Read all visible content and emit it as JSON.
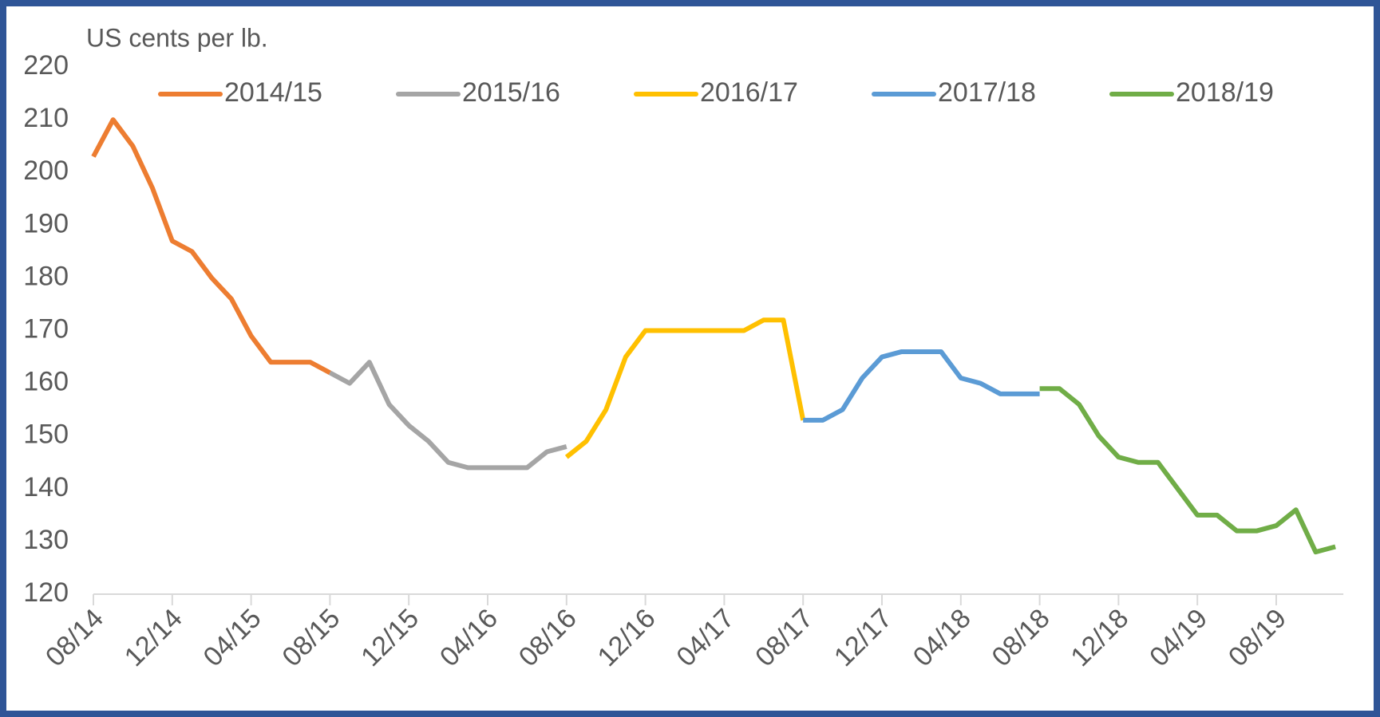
{
  "chart_data": {
    "type": "line",
    "y_label": "US cents per lb.",
    "categories": [
      "08/14",
      null,
      null,
      null,
      "12/14",
      null,
      null,
      null,
      "04/15",
      null,
      null,
      null,
      "08/15",
      null,
      null,
      null,
      "12/15",
      null,
      null,
      null,
      "04/16",
      null,
      null,
      null,
      "08/16",
      null,
      null,
      null,
      "12/16",
      null,
      null,
      null,
      "04/17",
      null,
      null,
      null,
      "08/17",
      null,
      null,
      null,
      "12/17",
      null,
      null,
      null,
      "04/18",
      null,
      null,
      null,
      "08/18",
      null,
      null,
      null,
      "12/18",
      null,
      null,
      null,
      "04/19",
      null,
      null,
      null,
      "08/19",
      null,
      null,
      null
    ],
    "series": [
      {
        "name": "2014/15",
        "color": "#ed7d31",
        "values": [
          203,
          210,
          205,
          197,
          187,
          185,
          180,
          176,
          169,
          164,
          164,
          164,
          162,
          null,
          null,
          null,
          null,
          null,
          null,
          null,
          null,
          null,
          null,
          null,
          null,
          null,
          null,
          null,
          null,
          null,
          null,
          null,
          null,
          null,
          null,
          null,
          null,
          null,
          null,
          null,
          null,
          null,
          null,
          null,
          null,
          null,
          null,
          null,
          null,
          null,
          null,
          null,
          null,
          null,
          null,
          null,
          null,
          null,
          null,
          null,
          null,
          null,
          null,
          null
        ]
      },
      {
        "name": "2015/16",
        "color": "#a5a5a5",
        "values": [
          null,
          null,
          null,
          null,
          null,
          null,
          null,
          null,
          null,
          null,
          null,
          null,
          162,
          160,
          164,
          156,
          152,
          149,
          145,
          144,
          144,
          144,
          144,
          147,
          148,
          null,
          null,
          null,
          null,
          null,
          null,
          null,
          null,
          null,
          null,
          null,
          null,
          null,
          null,
          null,
          null,
          null,
          null,
          null,
          null,
          null,
          null,
          null,
          null,
          null,
          null,
          null,
          null,
          null,
          null,
          null,
          null,
          null,
          null,
          null,
          null,
          null,
          null,
          null
        ]
      },
      {
        "name": "2016/17",
        "color": "#ffc000",
        "values": [
          null,
          null,
          null,
          null,
          null,
          null,
          null,
          null,
          null,
          null,
          null,
          null,
          null,
          null,
          null,
          null,
          null,
          null,
          null,
          null,
          null,
          null,
          null,
          null,
          146,
          149,
          155,
          165,
          170,
          170,
          170,
          170,
          170,
          170,
          172,
          172,
          153,
          null,
          null,
          null,
          null,
          null,
          null,
          null,
          null,
          null,
          null,
          null,
          null,
          null,
          null,
          null,
          null,
          null,
          null,
          null,
          null,
          null,
          null,
          null,
          null,
          null,
          null,
          null
        ]
      },
      {
        "name": "2017/18",
        "color": "#5b9bd5",
        "values": [
          null,
          null,
          null,
          null,
          null,
          null,
          null,
          null,
          null,
          null,
          null,
          null,
          null,
          null,
          null,
          null,
          null,
          null,
          null,
          null,
          null,
          null,
          null,
          null,
          null,
          null,
          null,
          null,
          null,
          null,
          null,
          null,
          null,
          null,
          null,
          null,
          153,
          153,
          155,
          161,
          165,
          166,
          166,
          166,
          161,
          160,
          158,
          158,
          158,
          null,
          null,
          null,
          null,
          null,
          null,
          null,
          null,
          null,
          null,
          null,
          null,
          null,
          null,
          null
        ]
      },
      {
        "name": "2018/19",
        "color": "#70ad47",
        "values": [
          null,
          null,
          null,
          null,
          null,
          null,
          null,
          null,
          null,
          null,
          null,
          null,
          null,
          null,
          null,
          null,
          null,
          null,
          null,
          null,
          null,
          null,
          null,
          null,
          null,
          null,
          null,
          null,
          null,
          null,
          null,
          null,
          null,
          null,
          null,
          null,
          null,
          null,
          null,
          null,
          null,
          null,
          null,
          null,
          null,
          null,
          null,
          null,
          159,
          159,
          156,
          150,
          146,
          145,
          145,
          140,
          135,
          135,
          132,
          132,
          133,
          136,
          128,
          129
        ]
      }
    ],
    "ylim": [
      120,
      220
    ],
    "yticks": [
      120,
      130,
      140,
      150,
      160,
      170,
      180,
      190,
      200,
      210,
      220
    ],
    "grid": false,
    "legend": "top"
  }
}
